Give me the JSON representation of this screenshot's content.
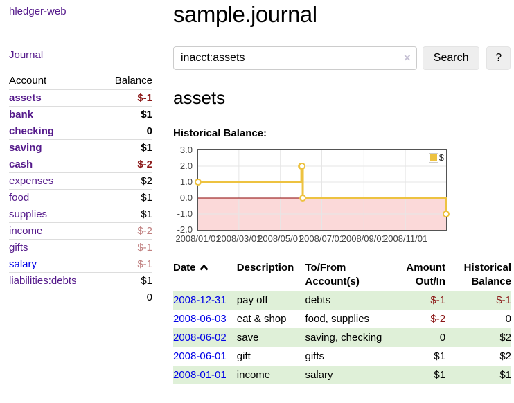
{
  "sidebar": {
    "app_title": "hledger-web",
    "nav": {
      "journal_label": "Journal"
    },
    "table": {
      "account_header": "Account",
      "balance_header": "Balance",
      "rows": [
        {
          "name": "assets",
          "balance": "$-1"
        },
        {
          "name": "bank",
          "balance": "$1"
        },
        {
          "name": "checking",
          "balance": "0"
        },
        {
          "name": "saving",
          "balance": "$1"
        },
        {
          "name": "cash",
          "balance": "$-2"
        },
        {
          "name": "expenses",
          "balance": "$2"
        },
        {
          "name": "food",
          "balance": "$1"
        },
        {
          "name": "supplies",
          "balance": "$1"
        },
        {
          "name": "income",
          "balance": "$-2"
        },
        {
          "name": "gifts",
          "balance": "$-1"
        },
        {
          "name": "salary",
          "balance": "$-1"
        },
        {
          "name": "liabilities:debts",
          "balance": "$1"
        }
      ],
      "total": "0"
    }
  },
  "main": {
    "title": "sample.journal",
    "search": {
      "value": "inacct:assets",
      "clear_icon": "×",
      "search_button": "Search",
      "help_button": "?"
    },
    "account_heading": "assets",
    "chart_label": "Historical Balance:"
  },
  "chart_data": {
    "type": "line",
    "step": true,
    "title": "Historical Balance",
    "series": [
      {
        "name": "$",
        "x": [
          "2008-01-01",
          "2008-06-01",
          "2008-06-02",
          "2008-06-03",
          "2008-12-31"
        ],
        "values": [
          1,
          2,
          2,
          0,
          -1
        ]
      }
    ],
    "xlim": [
      "2008-01-01",
      "2008-12-31"
    ],
    "ylim": [
      -2,
      3
    ],
    "y_ticks": [
      "3.0",
      "2.0",
      "1.0",
      "0.0",
      "-1.0",
      "-2.0"
    ],
    "x_ticks": [
      "2008/01/01",
      "2008/03/01",
      "2008/05/01",
      "2008/07/01",
      "2008/09/01",
      "2008/11/01"
    ],
    "legend_position": "top-right",
    "grid": true,
    "colors": {
      "line": "#edc240",
      "zero_line": "#8b0000",
      "negative_fill": "#fbd9d9",
      "grid": "#e6e6e6"
    }
  },
  "register": {
    "headers": {
      "date": "Date",
      "description": "Description",
      "accounts": "To/From Account(s)",
      "amount": "Amount Out/In",
      "balance": "Historical Balance"
    },
    "rows": [
      {
        "date": "2008-12-31",
        "description": "pay off",
        "accounts": "debts",
        "amount": "$-1",
        "balance": "$-1"
      },
      {
        "date": "2008-06-03",
        "description": "eat & shop",
        "accounts": "food, supplies",
        "amount": "$-2",
        "balance": "0"
      },
      {
        "date": "2008-06-02",
        "description": "save",
        "accounts": "saving, checking",
        "amount": "0",
        "balance": "$2"
      },
      {
        "date": "2008-06-01",
        "description": "gift",
        "accounts": "gifts",
        "amount": "$1",
        "balance": "$2"
      },
      {
        "date": "2008-01-01",
        "description": "income",
        "accounts": "salary",
        "amount": "$1",
        "balance": "$1"
      }
    ]
  }
}
